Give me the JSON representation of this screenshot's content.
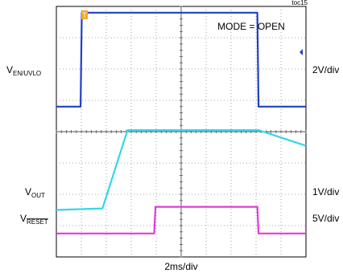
{
  "chart_data": {
    "type": "line",
    "figure_id": "toc15",
    "mode_label": "MODE = OPEN",
    "time_scale": "2ms/div",
    "divisions": {
      "x": 10,
      "y": 8
    },
    "trigger_marker": "T",
    "series": [
      {
        "name_main": "V",
        "name_sub": "EN/UVLO",
        "scale": "2V/div",
        "color": "#1f3fc8",
        "points_div": [
          [
            0,
            4.8
          ],
          [
            0.97,
            4.8
          ],
          [
            1.02,
            7.8
          ],
          [
            8.05,
            7.8
          ],
          [
            8.1,
            4.8
          ],
          [
            10,
            4.8
          ]
        ]
      },
      {
        "name_main": "V",
        "name_sub": "OUT",
        "scale": "1V/div",
        "color": "#33d6ea",
        "points_div": [
          [
            0,
            1.5
          ],
          [
            1.85,
            1.55
          ],
          [
            2.85,
            4.05
          ],
          [
            8.1,
            4.05
          ],
          [
            10,
            3.55
          ]
        ]
      },
      {
        "name_main": "V",
        "name_sub": "RESET",
        "sub_overline": true,
        "scale": "5V/div",
        "color": "#e23ad8",
        "points_div": [
          [
            0,
            0.75
          ],
          [
            3.92,
            0.75
          ],
          [
            3.97,
            1.6
          ],
          [
            8.05,
            1.6
          ],
          [
            8.1,
            0.75
          ],
          [
            10,
            0.75
          ]
        ]
      }
    ]
  }
}
